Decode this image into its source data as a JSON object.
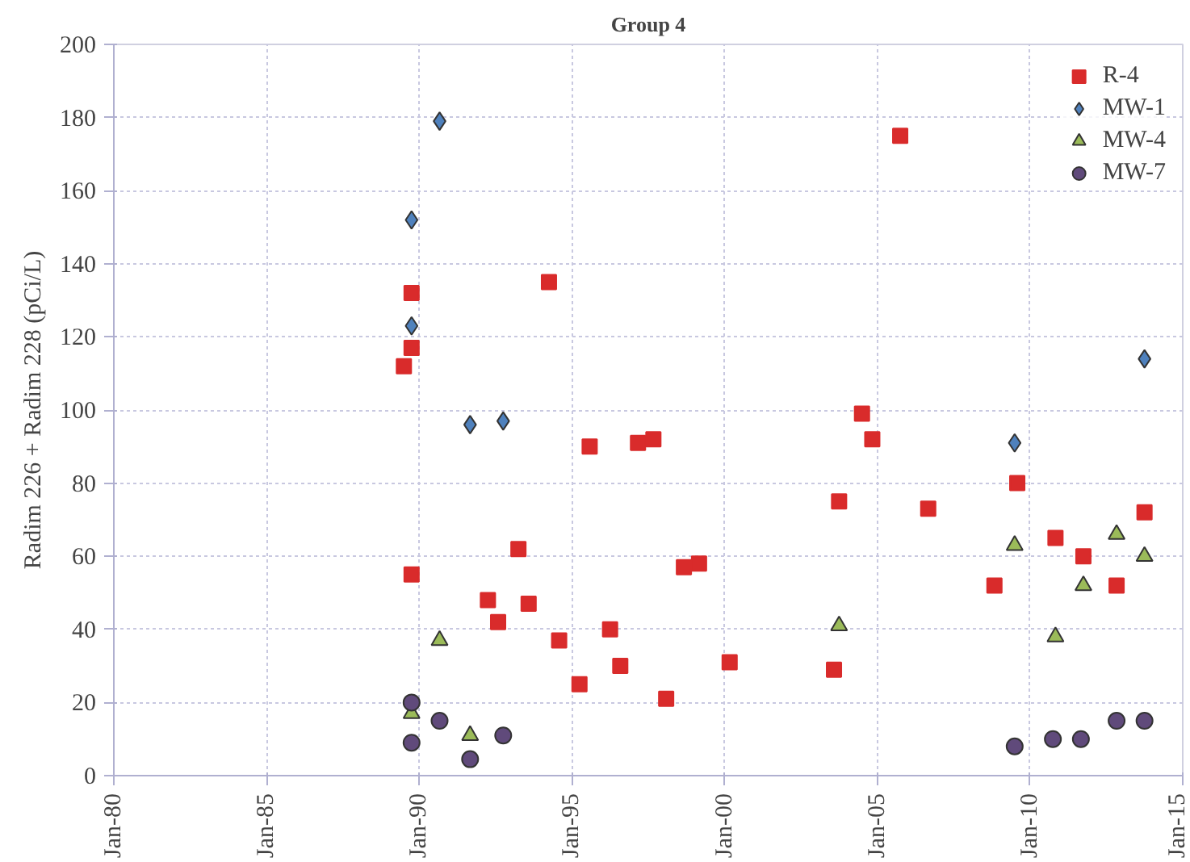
{
  "chart_data": {
    "type": "scatter",
    "title": "Group 4",
    "ylabel": "Radim 226 + Radim 228 (pCi/L)",
    "xlim": [
      "1980-01",
      "2015-01"
    ],
    "ylim": [
      0,
      200
    ],
    "xticks": [
      {
        "value": "1980-01",
        "label": "Jan-80"
      },
      {
        "value": "1985-01",
        "label": "Jan-85"
      },
      {
        "value": "1990-01",
        "label": "Jan-90"
      },
      {
        "value": "1995-01",
        "label": "Jan-95"
      },
      {
        "value": "2000-01",
        "label": "Jan-00"
      },
      {
        "value": "2005-01",
        "label": "Jan-05"
      },
      {
        "value": "2010-01",
        "label": "Jan-10"
      },
      {
        "value": "2015-01",
        "label": "Jan-15"
      }
    ],
    "yticks": [
      0,
      20,
      40,
      60,
      80,
      100,
      120,
      140,
      160,
      180,
      200
    ],
    "grid": true,
    "legend": "top right",
    "series": [
      {
        "name": "R-4",
        "color": "#d92b2b",
        "marker": "square",
        "x": [
          "1989-07",
          "1989-10",
          "1989-10",
          "1989-10",
          "1992-04",
          "1992-08",
          "1993-04",
          "1993-08",
          "1994-04",
          "1994-08",
          "1995-04",
          "1995-08",
          "1996-04",
          "1996-08",
          "1997-03",
          "1997-09",
          "1998-02",
          "1998-09",
          "1999-03",
          "2000-03",
          "2003-08",
          "2003-10",
          "2004-07",
          "2004-11",
          "2005-10",
          "2006-09",
          "2008-11",
          "2009-08",
          "2010-11",
          "2011-10",
          "2012-11",
          "2013-10"
        ],
        "values": [
          112,
          132,
          117,
          55,
          48,
          42,
          62,
          47,
          135,
          37,
          25,
          90,
          40,
          30,
          91,
          92,
          21,
          57,
          58,
          31,
          29,
          75,
          99,
          92,
          175,
          73,
          52,
          80,
          65,
          60,
          52,
          72
        ]
      },
      {
        "name": "MW-1",
        "color": "#4f81bd",
        "marker": "diamond",
        "x": [
          "1990-09",
          "1989-10",
          "1989-10",
          "1991-09",
          "1992-10",
          "2009-07",
          "2013-10"
        ],
        "values": [
          179,
          152,
          123,
          96,
          97,
          91,
          114
        ]
      },
      {
        "name": "MW-4",
        "color": "#9bbb59",
        "marker": "triangle",
        "x": [
          "1989-10",
          "1990-09",
          "1991-09",
          "2003-10",
          "2009-07",
          "2010-11",
          "2011-10",
          "2012-11",
          "2013-10"
        ],
        "values": [
          17,
          37,
          11,
          41,
          63,
          38,
          52,
          66,
          60
        ]
      },
      {
        "name": "MW-7",
        "color": "#604a7b",
        "marker": "circle",
        "x": [
          "1989-10",
          "1989-10",
          "1990-09",
          "1991-09",
          "1992-10",
          "2009-07",
          "2010-10",
          "2011-09",
          "2012-11",
          "2013-10"
        ],
        "values": [
          20,
          9,
          15,
          4.5,
          11,
          8,
          10,
          10,
          15,
          15
        ]
      }
    ]
  }
}
